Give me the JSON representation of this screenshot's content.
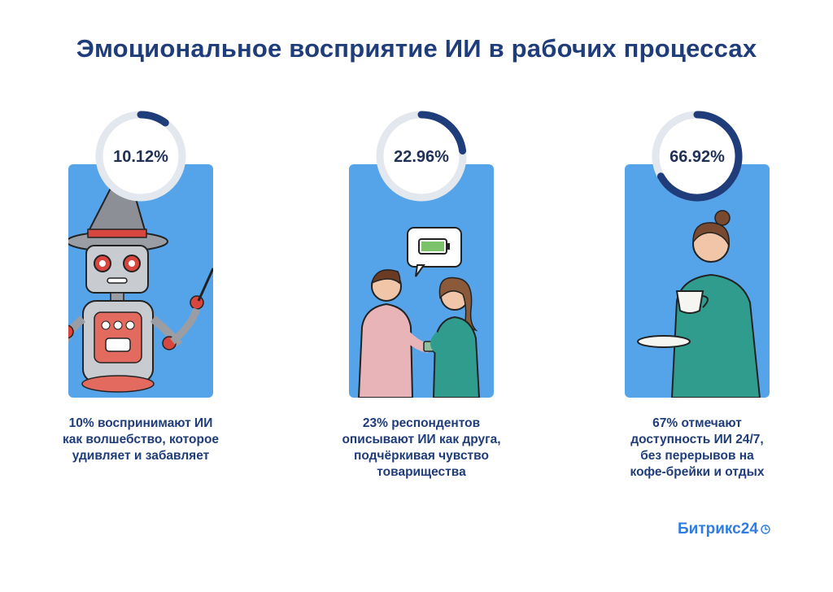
{
  "title": "Эмоциональное восприятие ИИ в рабочих процессах",
  "chart_data": {
    "type": "pie",
    "title": "Эмоциональное восприятие ИИ в рабочих процессах",
    "series": [
      {
        "value": 10.12,
        "value_label": "10.12%",
        "caption": [
          "10% воспринимают ИИ",
          "как волшебство, которое",
          "удивляет и забавляет"
        ],
        "illustration": "robot-wizard"
      },
      {
        "value": 22.96,
        "value_label": "22.96%",
        "caption": [
          "23% респондентов",
          "описывают ИИ как друга,",
          "подчёркивая чувство",
          "товарищества"
        ],
        "illustration": "two-colleagues-with-battery-bubble"
      },
      {
        "value": 66.92,
        "value_label": "66.92%",
        "caption": [
          "67% отмечают",
          "доступность ИИ 24/7,",
          "без перерывов на",
          "кофе-брейки и отдых"
        ],
        "illustration": "woman-with-coffee-cup"
      }
    ],
    "colors": {
      "progress": "#1f3d7a",
      "track": "#e3e7ee",
      "card": "#55a4ea"
    }
  },
  "brand": {
    "name": "Битрикс24",
    "icon": "clock-icon"
  }
}
